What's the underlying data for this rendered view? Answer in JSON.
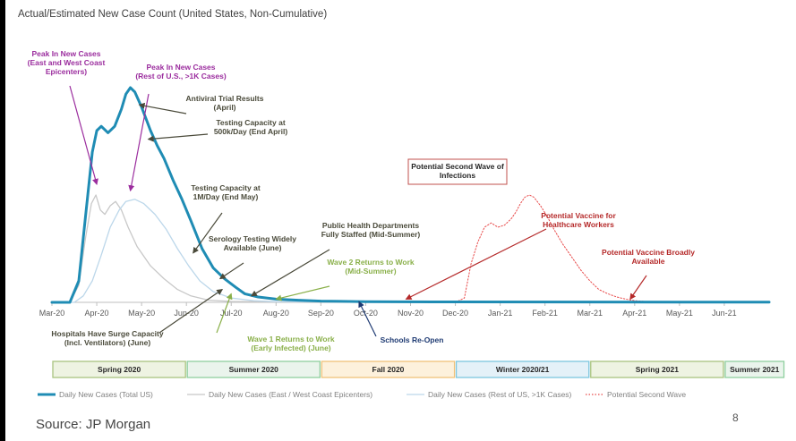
{
  "title": "Actual/Estimated New Case Count (United States, Non-Cumulative)",
  "source": "Source: JP Morgan",
  "page_number": "8",
  "chart_data": {
    "type": "line",
    "title": "Actual/Estimated New Case Count (United States, Non-Cumulative)",
    "x_tick_labels": [
      "Mar-20",
      "Apr-20",
      "May-20",
      "Jun-20",
      "Jul-20",
      "Aug-20",
      "Sep-20",
      "Oct-20",
      "Nov-20",
      "Dec-20",
      "Jan-21",
      "Feb-21",
      "Mar-21",
      "Apr-21",
      "May-21",
      "Jun-21"
    ],
    "xlim": [
      0,
      16
    ],
    "ylim": [
      0,
      100
    ],
    "y_units": "relative (no y-axis printed)",
    "grid": false,
    "legend_position": "bottom",
    "series": [
      {
        "name": "Daily New Cases (Total US)",
        "color": "#1f8cb4",
        "style": "solid-thick",
        "points": [
          [
            0,
            0
          ],
          [
            0.4,
            0
          ],
          [
            0.6,
            10
          ],
          [
            0.75,
            40
          ],
          [
            0.9,
            70
          ],
          [
            1.0,
            80
          ],
          [
            1.1,
            82
          ],
          [
            1.25,
            79
          ],
          [
            1.4,
            82
          ],
          [
            1.55,
            90
          ],
          [
            1.65,
            97
          ],
          [
            1.75,
            100
          ],
          [
            1.85,
            98
          ],
          [
            2.0,
            91
          ],
          [
            2.2,
            80
          ],
          [
            2.35,
            73
          ],
          [
            2.5,
            67
          ],
          [
            2.7,
            57
          ],
          [
            2.9,
            48
          ],
          [
            3.1,
            38
          ],
          [
            3.35,
            25
          ],
          [
            3.6,
            16
          ],
          [
            3.85,
            11
          ],
          [
            4.1,
            7
          ],
          [
            4.3,
            4
          ],
          [
            4.6,
            2.5
          ],
          [
            5.0,
            1.5
          ],
          [
            5.5,
            1
          ],
          [
            6.0,
            0.6
          ],
          [
            7.0,
            0.3
          ],
          [
            8.5,
            0.2
          ],
          [
            16,
            0.1
          ]
        ]
      },
      {
        "name": "Daily New Cases (East / West Coast Epicenters)",
        "color": "#c8c8c8",
        "style": "solid-thin",
        "points": [
          [
            0,
            0
          ],
          [
            0.4,
            0
          ],
          [
            0.6,
            8
          ],
          [
            0.75,
            30
          ],
          [
            0.88,
            46
          ],
          [
            0.98,
            50
          ],
          [
            1.08,
            43
          ],
          [
            1.18,
            41
          ],
          [
            1.3,
            45
          ],
          [
            1.42,
            47
          ],
          [
            1.55,
            43
          ],
          [
            1.7,
            35
          ],
          [
            1.9,
            26
          ],
          [
            2.2,
            17
          ],
          [
            2.5,
            11
          ],
          [
            2.8,
            6
          ],
          [
            3.1,
            3
          ],
          [
            3.5,
            1
          ],
          [
            4.0,
            0.4
          ],
          [
            16,
            0
          ]
        ]
      },
      {
        "name": "Daily New Cases (Rest of US, >1K Cases)",
        "color": "#bcd7ea",
        "style": "solid-thin",
        "points": [
          [
            0,
            0
          ],
          [
            0.5,
            0
          ],
          [
            0.7,
            3
          ],
          [
            0.9,
            10
          ],
          [
            1.1,
            22
          ],
          [
            1.3,
            35
          ],
          [
            1.5,
            43
          ],
          [
            1.65,
            47
          ],
          [
            1.85,
            48
          ],
          [
            2.05,
            46
          ],
          [
            2.3,
            41
          ],
          [
            2.55,
            34
          ],
          [
            2.8,
            25
          ],
          [
            3.05,
            17
          ],
          [
            3.3,
            10
          ],
          [
            3.6,
            5
          ],
          [
            4.0,
            2
          ],
          [
            4.5,
            0.8
          ],
          [
            5.0,
            0.3
          ],
          [
            16,
            0.1
          ]
        ]
      },
      {
        "name": "Potential Second Wave",
        "color": "#e84a4a",
        "style": "dotted",
        "points": [
          [
            9.0,
            0
          ],
          [
            9.2,
            2
          ],
          [
            9.35,
            18
          ],
          [
            9.5,
            28
          ],
          [
            9.65,
            35
          ],
          [
            9.8,
            37
          ],
          [
            9.95,
            35
          ],
          [
            10.1,
            36
          ],
          [
            10.25,
            39
          ],
          [
            10.35,
            42
          ],
          [
            10.45,
            46
          ],
          [
            10.55,
            49
          ],
          [
            10.65,
            50
          ],
          [
            10.75,
            49
          ],
          [
            10.9,
            45
          ],
          [
            11.05,
            40
          ],
          [
            11.2,
            34
          ],
          [
            11.4,
            27
          ],
          [
            11.6,
            21
          ],
          [
            11.8,
            15
          ],
          [
            12.0,
            10
          ],
          [
            12.2,
            6
          ],
          [
            12.4,
            4
          ],
          [
            12.6,
            2.5
          ],
          [
            12.8,
            1.5
          ],
          [
            13.0,
            0.8
          ],
          [
            13.3,
            0.3
          ],
          [
            13.6,
            0
          ]
        ]
      }
    ],
    "annotations": [
      {
        "id": "peak1",
        "text": [
          "Peak In New Cases",
          "(East and West Coast",
          "Epicenters)"
        ],
        "color": "#9b2d9e",
        "arrow_to": [
          1.0,
          55
        ]
      },
      {
        "id": "peak2",
        "text": [
          "Peak In New Cases",
          "(Rest of U.S., >1K Cases)"
        ],
        "color": "#9b2d9e",
        "arrow_to": [
          1.75,
          52
        ]
      },
      {
        "id": "antiviral",
        "text": [
          "Antiviral Trial Results",
          "(April)"
        ],
        "color": "#4a4a3a",
        "arrow_to": [
          1.95,
          92
        ]
      },
      {
        "id": "testing500k",
        "text": [
          "Testing Capacity at",
          "500k/Day (End April)"
        ],
        "color": "#4a4a3a",
        "arrow_to": [
          2.15,
          76
        ]
      },
      {
        "id": "testing1m",
        "text": [
          "Testing Capacity at",
          "1M/Day (End May)"
        ],
        "color": "#4a4a3a",
        "arrow_to": [
          3.15,
          23
        ]
      },
      {
        "id": "serology",
        "text": [
          "Serology Testing Widely",
          "Available (June)"
        ],
        "color": "#4a4a3a",
        "arrow_to": [
          3.75,
          11
        ]
      },
      {
        "id": "publichealth",
        "text": [
          "Public Health Departments",
          "Fully Staffed (Mid-Summer)"
        ],
        "color": "#4a4a3a",
        "arrow_to": [
          4.45,
          3
        ]
      },
      {
        "id": "wave2",
        "text": [
          "Wave 2 Returns to Work",
          "(Mid-Summer)"
        ],
        "color": "#8ab04a",
        "arrow_to": [
          5.0,
          1.5
        ]
      },
      {
        "id": "secondwave",
        "text": [
          "Potential Second Wave of",
          "Infections"
        ],
        "color": "#262626",
        "boxed": true
      },
      {
        "id": "vaccinehc",
        "text": [
          "Potential Vaccine for",
          "Healthcare Workers"
        ],
        "color": "#b52a2a",
        "arrow_to": [
          7.9,
          1.5
        ]
      },
      {
        "id": "vaccinebroad",
        "text": [
          "Potential Vaccine Broadly",
          "Available"
        ],
        "color": "#b52a2a",
        "arrow_to": [
          12.9,
          1.5
        ]
      },
      {
        "id": "hospitals",
        "text": [
          "Hospitals Have Surge Capacity",
          "(Incl. Ventilators) (June)"
        ],
        "color": "#4a4a3a",
        "arrow_to": [
          3.8,
          6
        ]
      },
      {
        "id": "wave1",
        "text": [
          "Wave 1 Returns to Work",
          "(Early Infected) (June)"
        ],
        "color": "#8ab04a",
        "arrow_to": [
          4.0,
          4
        ]
      },
      {
        "id": "schools",
        "text": [
          "Schools Re-Open"
        ],
        "color": "#1f3b73",
        "arrow_to": [
          6.85,
          0.3
        ]
      }
    ],
    "seasons": [
      {
        "label": "Spring 2020",
        "start": 0,
        "end": 3,
        "fill": "#eef3e2",
        "border": "#a9c47f"
      },
      {
        "label": "Summer 2020",
        "start": 3,
        "end": 6,
        "fill": "#eaf4ec",
        "border": "#8fcf9f"
      },
      {
        "label": "Fall 2020",
        "start": 6,
        "end": 9,
        "fill": "#fdf1dc",
        "border": "#f0c27a"
      },
      {
        "label": "Winter 2020/21",
        "start": 9,
        "end": 12,
        "fill": "#e4f1f8",
        "border": "#7cc6de"
      },
      {
        "label": "Spring 2021",
        "start": 12,
        "end": 15,
        "fill": "#eef3e2",
        "border": "#a9c47f"
      },
      {
        "label": "Summer 2021",
        "start": 15,
        "end": 16.35,
        "fill": "#eaf4ec",
        "border": "#8fcf9f"
      }
    ]
  }
}
